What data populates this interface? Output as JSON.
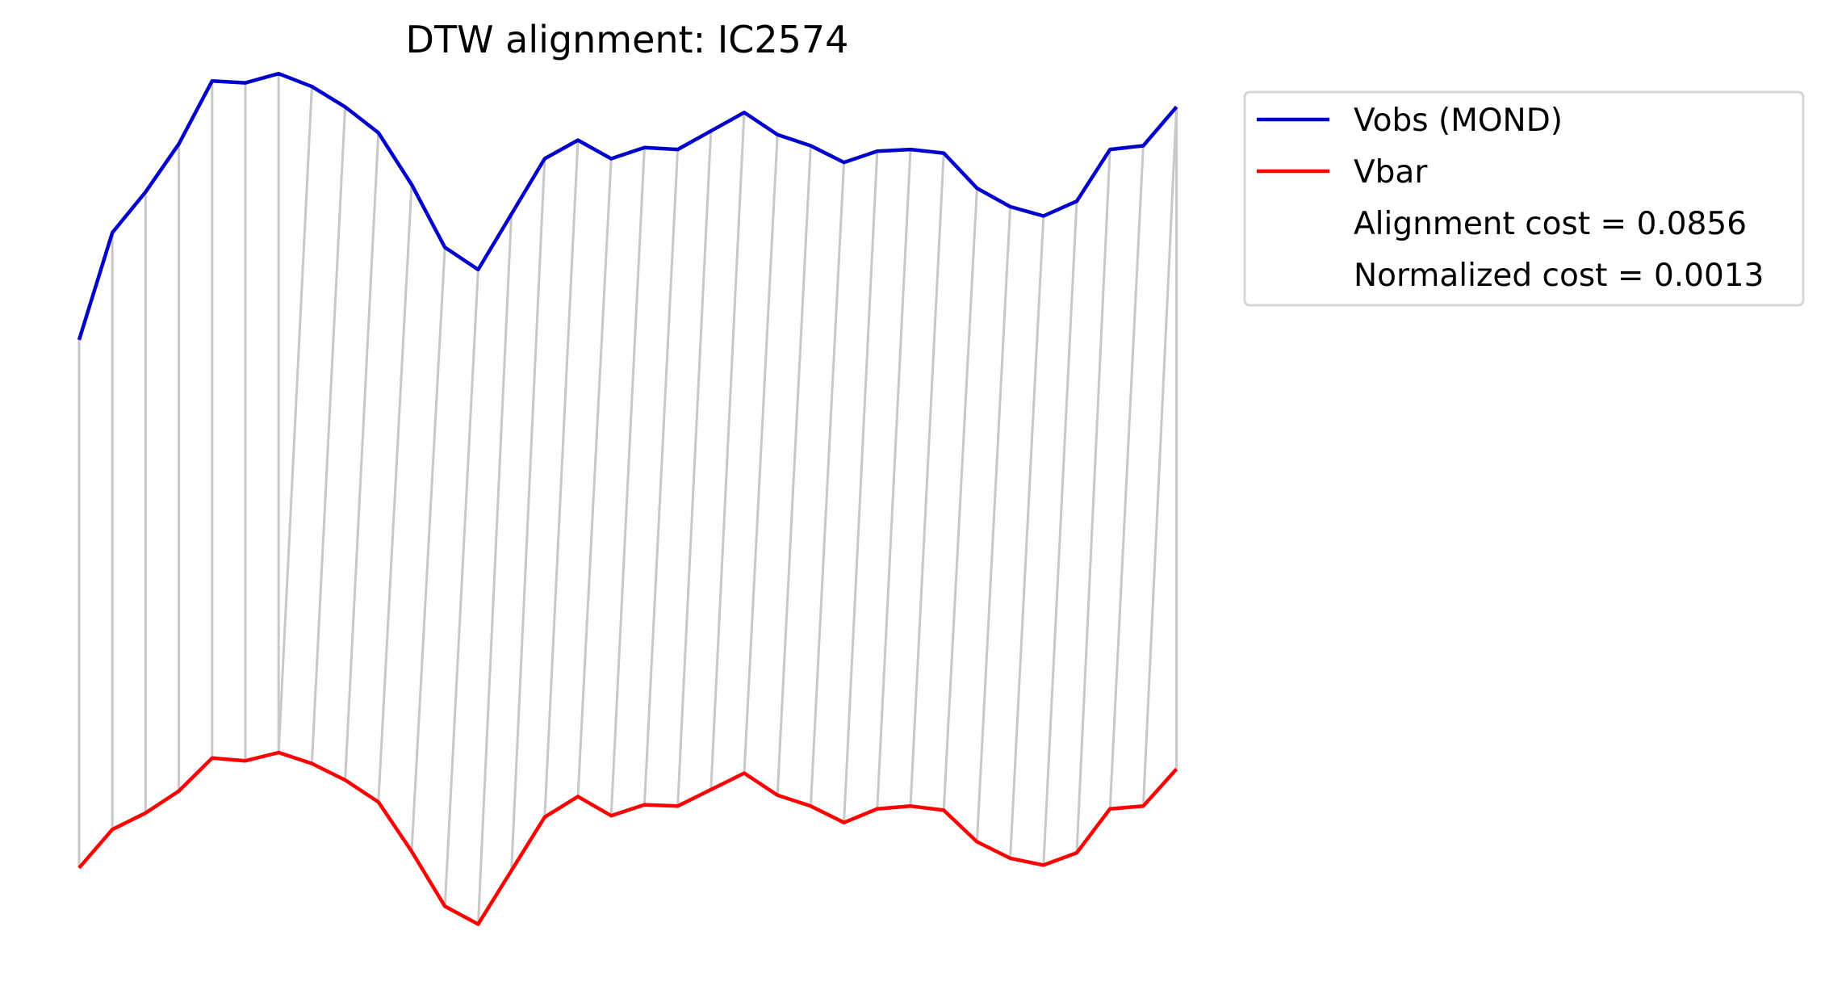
{
  "chart_data": {
    "type": "line",
    "title": "DTW alignment: IC2574",
    "xlabel": "",
    "ylabel": "",
    "axes_visible": false,
    "grid": false,
    "legend_position": "upper-right-outside",
    "series": [
      {
        "name": "Vobs (MOND)",
        "color": "#0000cc",
        "values": [
          0.26,
          0.55,
          0.66,
          0.79,
          0.96,
          0.955,
          0.98,
          0.945,
          0.89,
          0.82,
          0.68,
          0.51,
          0.45,
          0.6,
          0.75,
          0.8,
          0.75,
          0.78,
          0.775,
          0.825,
          0.875,
          0.815,
          0.785,
          0.74,
          0.77,
          0.775,
          0.765,
          0.67,
          0.62,
          0.595,
          0.635,
          0.775,
          0.785,
          0.89
        ]
      },
      {
        "name": "Vbar",
        "color": "#ff0000",
        "values": [
          0.28,
          0.42,
          0.48,
          0.56,
          0.68,
          0.67,
          0.7,
          0.66,
          0.6,
          0.52,
          0.34,
          0.14,
          0.075,
          0.27,
          0.465,
          0.54,
          0.47,
          0.51,
          0.505,
          0.565,
          0.625,
          0.545,
          0.505,
          0.445,
          0.495,
          0.505,
          0.49,
          0.375,
          0.315,
          0.29,
          0.335,
          0.495,
          0.505,
          0.64
        ]
      }
    ],
    "alignment_path": [
      [
        0,
        0
      ],
      [
        1,
        1
      ],
      [
        2,
        2
      ],
      [
        3,
        3
      ],
      [
        4,
        4
      ],
      [
        5,
        5
      ],
      [
        6,
        6
      ],
      [
        7,
        6
      ],
      [
        8,
        7
      ],
      [
        9,
        8
      ],
      [
        10,
        9
      ],
      [
        11,
        10
      ],
      [
        12,
        11
      ],
      [
        13,
        12
      ],
      [
        14,
        13
      ],
      [
        15,
        14
      ],
      [
        16,
        15
      ],
      [
        17,
        16
      ],
      [
        18,
        17
      ],
      [
        19,
        18
      ],
      [
        20,
        19
      ],
      [
        21,
        20
      ],
      [
        22,
        21
      ],
      [
        23,
        22
      ],
      [
        24,
        23
      ],
      [
        25,
        24
      ],
      [
        26,
        25
      ],
      [
        27,
        26
      ],
      [
        28,
        27
      ],
      [
        29,
        28
      ],
      [
        30,
        29
      ],
      [
        31,
        30
      ],
      [
        32,
        31
      ],
      [
        33,
        32
      ],
      [
        33,
        33
      ]
    ],
    "alignment_line_color": "#c8c8c8",
    "legend_entries": [
      {
        "label": "Vobs (MOND)",
        "color": "#0000cc",
        "has_line": true
      },
      {
        "label": "Vbar",
        "color": "#ff0000",
        "has_line": true
      },
      {
        "label": "Alignment cost = 0.0856",
        "has_line": false
      },
      {
        "label": "Normalized cost = 0.0013",
        "has_line": false
      }
    ]
  }
}
